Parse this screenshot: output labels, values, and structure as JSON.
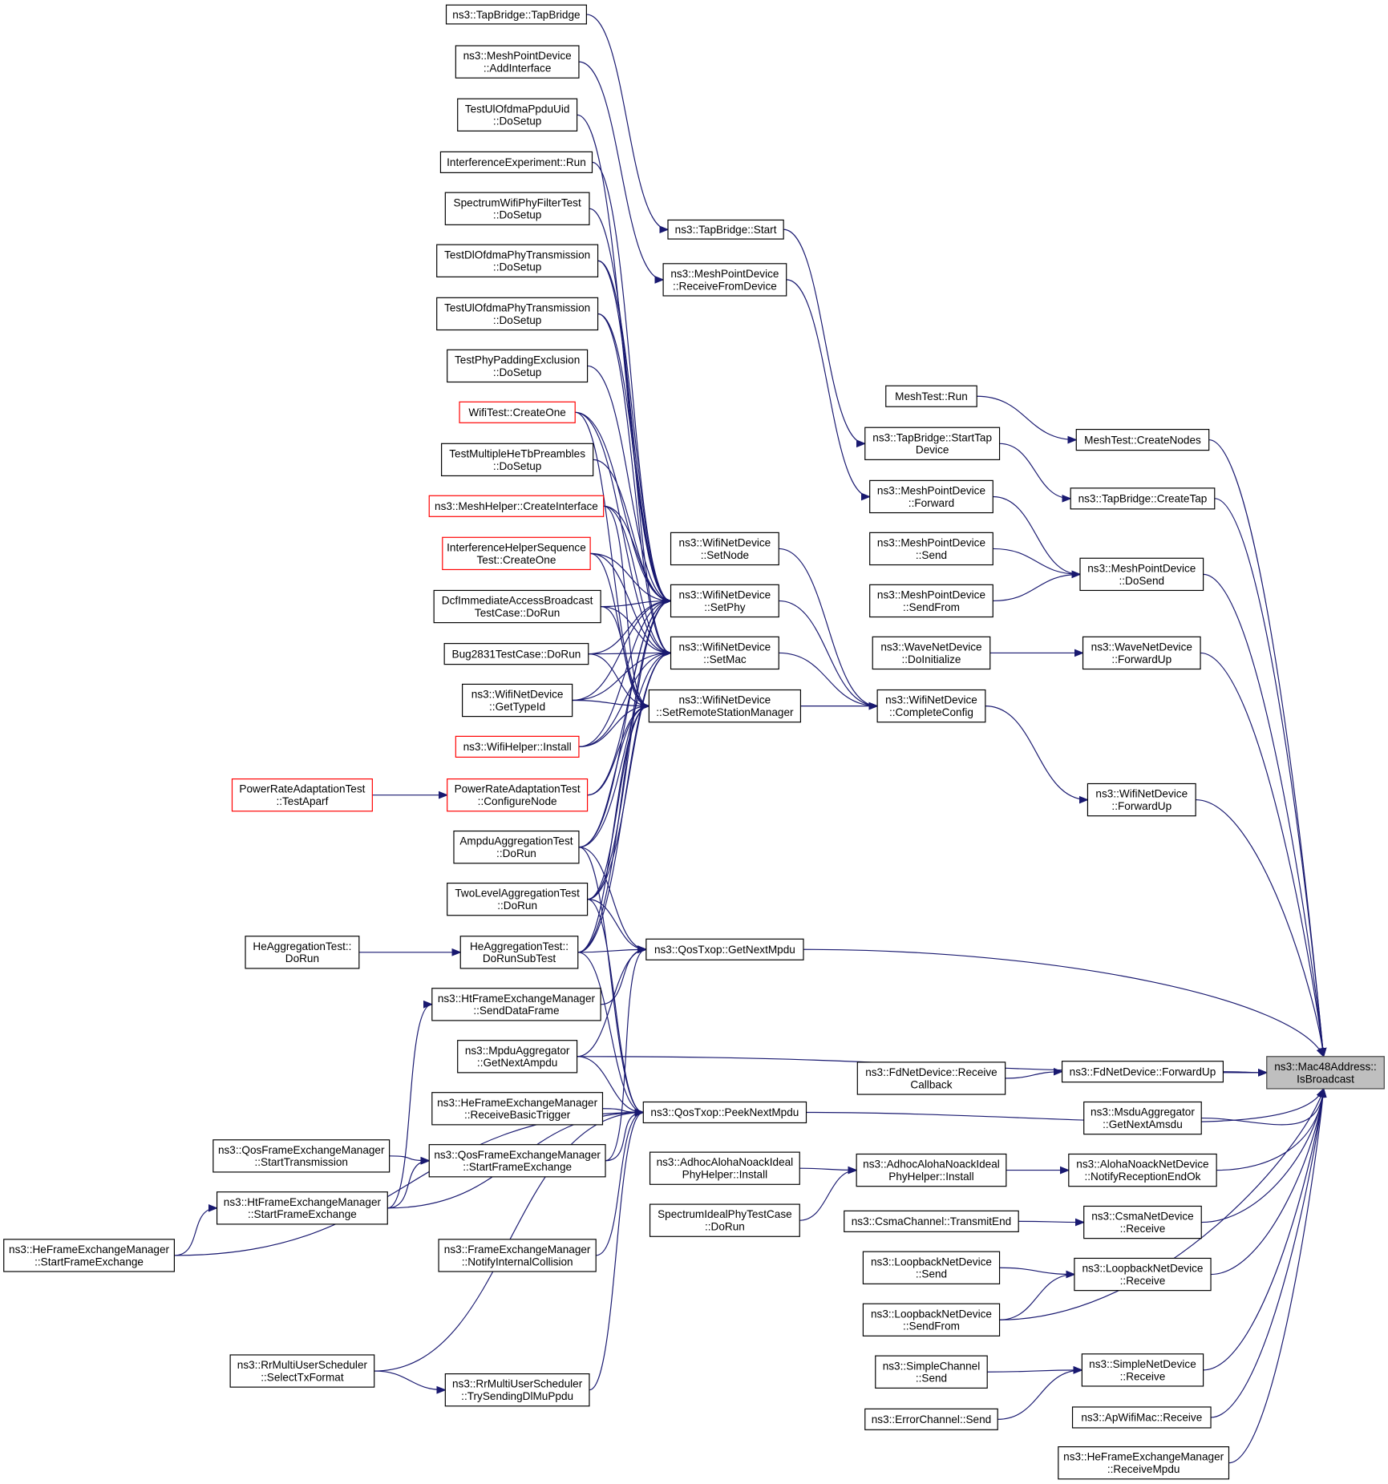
{
  "graph": {
    "edge_color": "#191970",
    "highlight_fill": "#bfbfbf",
    "red_border": "#ff0000",
    "nodes": [
      {
        "id": "n1",
        "lines": [
          "ns3::TapBridge::TapBridge"
        ]
      },
      {
        "id": "n2",
        "lines": [
          "ns3::MeshPointDevice",
          "::AddInterface"
        ]
      },
      {
        "id": "n3",
        "lines": [
          "TestUlOfdmaPpduUid",
          "::DoSetup"
        ]
      },
      {
        "id": "n4",
        "lines": [
          "InterferenceExperiment::Run"
        ]
      },
      {
        "id": "n5",
        "lines": [
          "SpectrumWifiPhyFilterTest",
          "::DoSetup"
        ]
      },
      {
        "id": "n6",
        "lines": [
          "TestDlOfdmaPhyTransmission",
          "::DoSetup"
        ]
      },
      {
        "id": "n7",
        "lines": [
          "TestUlOfdmaPhyTransmission",
          "::DoSetup"
        ]
      },
      {
        "id": "n8",
        "lines": [
          "TestPhyPaddingExclusion",
          "::DoSetup"
        ]
      },
      {
        "id": "n9",
        "lines": [
          "WifiTest::CreateOne"
        ],
        "red": true
      },
      {
        "id": "n10",
        "lines": [
          "TestMultipleHeTbPreambles",
          "::DoSetup"
        ]
      },
      {
        "id": "n11",
        "lines": [
          "ns3::MeshHelper::CreateInterface"
        ],
        "red": true
      },
      {
        "id": "n12",
        "lines": [
          "InterferenceHelperSequence",
          "Test::CreateOne"
        ],
        "red": true
      },
      {
        "id": "n13",
        "lines": [
          "DcfImmediateAccessBroadcast",
          "TestCase::DoRun"
        ]
      },
      {
        "id": "n14",
        "lines": [
          "Bug2831TestCase::DoRun"
        ]
      },
      {
        "id": "n15",
        "lines": [
          "ns3::WifiNetDevice",
          "::GetTypeId"
        ]
      },
      {
        "id": "n16",
        "lines": [
          "ns3::WifiHelper::Install"
        ],
        "red": true
      },
      {
        "id": "n17",
        "lines": [
          "PowerRateAdaptationTest",
          "::ConfigureNode"
        ],
        "red": true
      },
      {
        "id": "n18",
        "lines": [
          "PowerRateAdaptationTest",
          "::TestAparf"
        ],
        "red": true
      },
      {
        "id": "n19",
        "lines": [
          "AmpduAggregationTest",
          "::DoRun"
        ]
      },
      {
        "id": "n20",
        "lines": [
          "TwoLevelAggregationTest",
          "::DoRun"
        ]
      },
      {
        "id": "n21",
        "lines": [
          "HeAggregationTest::",
          "DoRun"
        ]
      },
      {
        "id": "n22",
        "lines": [
          "HeAggregationTest::",
          "DoRunSubTest"
        ]
      },
      {
        "id": "n23",
        "lines": [
          "ns3::HtFrameExchangeManager",
          "::SendDataFrame"
        ]
      },
      {
        "id": "n24",
        "lines": [
          "ns3::MpduAggregator",
          "::GetNextAmpdu"
        ]
      },
      {
        "id": "n25",
        "lines": [
          "ns3::HeFrameExchangeManager",
          "::ReceiveBasicTrigger"
        ]
      },
      {
        "id": "n26",
        "lines": [
          "ns3::QosFrameExchangeManager",
          "::StartTransmission"
        ]
      },
      {
        "id": "n27",
        "lines": [
          "ns3::QosFrameExchangeManager",
          "::StartFrameExchange"
        ]
      },
      {
        "id": "n28",
        "lines": [
          "ns3::HtFrameExchangeManager",
          "::StartFrameExchange"
        ]
      },
      {
        "id": "n29",
        "lines": [
          "ns3::HeFrameExchangeManager",
          "::StartFrameExchange"
        ]
      },
      {
        "id": "n30",
        "lines": [
          "ns3::FrameExchangeManager",
          "::NotifyInternalCollision"
        ]
      },
      {
        "id": "n31",
        "lines": [
          "ns3::RrMultiUserScheduler",
          "::SelectTxFormat"
        ]
      },
      {
        "id": "n32",
        "lines": [
          "ns3::RrMultiUserScheduler",
          "::TrySendingDlMuPpdu"
        ]
      },
      {
        "id": "n33",
        "lines": [
          "ns3::TapBridge::Start"
        ]
      },
      {
        "id": "n34",
        "lines": [
          "ns3::MeshPointDevice",
          "::ReceiveFromDevice"
        ]
      },
      {
        "id": "n35",
        "lines": [
          "ns3::WifiNetDevice",
          "::SetNode"
        ]
      },
      {
        "id": "n36",
        "lines": [
          "ns3::WifiNetDevice",
          "::SetPhy"
        ]
      },
      {
        "id": "n37",
        "lines": [
          "ns3::WifiNetDevice",
          "::SetMac"
        ]
      },
      {
        "id": "n38",
        "lines": [
          "ns3::WifiNetDevice",
          "::SetRemoteStationManager"
        ]
      },
      {
        "id": "n39",
        "lines": [
          "ns3::QosTxop::GetNextMpdu"
        ]
      },
      {
        "id": "n40",
        "lines": [
          "ns3::QosTxop::PeekNextMpdu"
        ]
      },
      {
        "id": "n41",
        "lines": [
          "ns3::AdhocAlohaNoackIdeal",
          "PhyHelper::Install"
        ]
      },
      {
        "id": "n42",
        "lines": [
          "SpectrumIdealPhyTestCase",
          "::DoRun"
        ]
      },
      {
        "id": "n43",
        "lines": [
          "MeshTest::Run"
        ]
      },
      {
        "id": "n44",
        "lines": [
          "ns3::TapBridge::StartTap",
          "Device"
        ]
      },
      {
        "id": "n45",
        "lines": [
          "ns3::MeshPointDevice",
          "::Forward"
        ]
      },
      {
        "id": "n46",
        "lines": [
          "ns3::MeshPointDevice",
          "::Send"
        ]
      },
      {
        "id": "n47",
        "lines": [
          "ns3::MeshPointDevice",
          "::SendFrom"
        ]
      },
      {
        "id": "n48",
        "lines": [
          "ns3::WaveNetDevice",
          "::DoInitialize"
        ]
      },
      {
        "id": "n49",
        "lines": [
          "ns3::WifiNetDevice",
          "::CompleteConfig"
        ]
      },
      {
        "id": "n50",
        "lines": [
          "ns3::FdNetDevice::Receive",
          "Callback"
        ]
      },
      {
        "id": "n51",
        "lines": [
          "ns3::AdhocAlohaNoackIdeal",
          "PhyHelper::Install"
        ]
      },
      {
        "id": "n52",
        "lines": [
          "ns3::CsmaChannel::TransmitEnd"
        ]
      },
      {
        "id": "n53",
        "lines": [
          "ns3::LoopbackNetDevice",
          "::Send"
        ]
      },
      {
        "id": "n54",
        "lines": [
          "ns3::LoopbackNetDevice",
          "::SendFrom"
        ]
      },
      {
        "id": "n55",
        "lines": [
          "ns3::SimpleChannel",
          "::Send"
        ]
      },
      {
        "id": "n56",
        "lines": [
          "ns3::ErrorChannel::Send"
        ]
      },
      {
        "id": "n57",
        "lines": [
          "MeshTest::CreateNodes"
        ]
      },
      {
        "id": "n58",
        "lines": [
          "ns3::TapBridge::CreateTap"
        ]
      },
      {
        "id": "n59",
        "lines": [
          "ns3::MeshPointDevice",
          "::DoSend"
        ]
      },
      {
        "id": "n60",
        "lines": [
          "ns3::WaveNetDevice",
          "::ForwardUp"
        ]
      },
      {
        "id": "n61",
        "lines": [
          "ns3::WifiNetDevice",
          "::ForwardUp"
        ]
      },
      {
        "id": "n62",
        "lines": [
          "ns3::FdNetDevice::ForwardUp"
        ]
      },
      {
        "id": "n63",
        "lines": [
          "ns3::MsduAggregator",
          "::GetNextAmsdu"
        ]
      },
      {
        "id": "n64",
        "lines": [
          "ns3::AlohaNoackNetDevice",
          "::NotifyReceptionEndOk"
        ]
      },
      {
        "id": "n65",
        "lines": [
          "ns3::CsmaNetDevice",
          "::Receive"
        ]
      },
      {
        "id": "n66",
        "lines": [
          "ns3::LoopbackNetDevice",
          "::Receive"
        ]
      },
      {
        "id": "n67",
        "lines": [
          "ns3::SimpleNetDevice",
          "::Receive"
        ]
      },
      {
        "id": "n68",
        "lines": [
          "ns3::ApWifiMac::Receive"
        ]
      },
      {
        "id": "n69",
        "lines": [
          "ns3::HeFrameExchangeManager",
          "::ReceiveMpdu"
        ]
      },
      {
        "id": "n70",
        "lines": [
          "ns3::Mac48Address::",
          "IsBroadcast"
        ],
        "target": true
      }
    ],
    "edges": [
      [
        "n1",
        "n33"
      ],
      [
        "n2",
        "n34"
      ],
      [
        "n33",
        "n44"
      ],
      [
        "n34",
        "n45"
      ],
      [
        "n43",
        "n57"
      ],
      [
        "n44",
        "n58"
      ],
      [
        "n45",
        "n59"
      ],
      [
        "n46",
        "n59"
      ],
      [
        "n47",
        "n59"
      ],
      [
        "n48",
        "n60"
      ],
      [
        "n49",
        "n61"
      ],
      [
        "n35",
        "n49"
      ],
      [
        "n36",
        "n49"
      ],
      [
        "n37",
        "n49"
      ],
      [
        "n38",
        "n49"
      ],
      [
        "n50",
        "n62"
      ],
      [
        "n41",
        "n51"
      ],
      [
        "n42",
        "n51"
      ],
      [
        "n51",
        "n64"
      ],
      [
        "n52",
        "n65"
      ],
      [
        "n53",
        "n66"
      ],
      [
        "n54",
        "n66"
      ],
      [
        "n55",
        "n67"
      ],
      [
        "n56",
        "n67"
      ],
      [
        "n18",
        "n17"
      ],
      [
        "n21",
        "n22"
      ],
      [
        "n3",
        "n36"
      ],
      [
        "n4",
        "n36"
      ],
      [
        "n5",
        "n36"
      ],
      [
        "n6",
        "n36"
      ],
      [
        "n7",
        "n36"
      ],
      [
        "n8",
        "n36"
      ],
      [
        "n9",
        "n36"
      ],
      [
        "n10",
        "n36"
      ],
      [
        "n11",
        "n36"
      ],
      [
        "n12",
        "n36"
      ],
      [
        "n13",
        "n36"
      ],
      [
        "n14",
        "n36"
      ],
      [
        "n15",
        "n36"
      ],
      [
        "n16",
        "n36"
      ],
      [
        "n17",
        "n36"
      ],
      [
        "n19",
        "n36"
      ],
      [
        "n20",
        "n36"
      ],
      [
        "n22",
        "n36"
      ],
      [
        "n6",
        "n37"
      ],
      [
        "n7",
        "n37"
      ],
      [
        "n9",
        "n37"
      ],
      [
        "n11",
        "n37"
      ],
      [
        "n12",
        "n37"
      ],
      [
        "n13",
        "n37"
      ],
      [
        "n14",
        "n37"
      ],
      [
        "n15",
        "n37"
      ],
      [
        "n16",
        "n37"
      ],
      [
        "n19",
        "n37"
      ],
      [
        "n20",
        "n37"
      ],
      [
        "n22",
        "n37"
      ],
      [
        "n9",
        "n38"
      ],
      [
        "n11",
        "n38"
      ],
      [
        "n12",
        "n38"
      ],
      [
        "n13",
        "n38"
      ],
      [
        "n14",
        "n38"
      ],
      [
        "n15",
        "n38"
      ],
      [
        "n16",
        "n38"
      ],
      [
        "n17",
        "n38"
      ],
      [
        "n19",
        "n38"
      ],
      [
        "n20",
        "n38"
      ],
      [
        "n22",
        "n38"
      ],
      [
        "n19",
        "n39"
      ],
      [
        "n20",
        "n39"
      ],
      [
        "n22",
        "n39"
      ],
      [
        "n23",
        "n39"
      ],
      [
        "n24",
        "n39"
      ],
      [
        "n27",
        "n39"
      ],
      [
        "n19",
        "n40"
      ],
      [
        "n20",
        "n40"
      ],
      [
        "n22",
        "n40"
      ],
      [
        "n24",
        "n40"
      ],
      [
        "n25",
        "n40"
      ],
      [
        "n27",
        "n40"
      ],
      [
        "n28",
        "n40"
      ],
      [
        "n29",
        "n40"
      ],
      [
        "n30",
        "n40"
      ],
      [
        "n31",
        "n40"
      ],
      [
        "n32",
        "n40"
      ],
      [
        "n26",
        "n27"
      ],
      [
        "n28",
        "n27"
      ],
      [
        "n28",
        "n23"
      ],
      [
        "n29",
        "n28"
      ],
      [
        "n31",
        "n32"
      ],
      [
        "n39",
        "n70"
      ],
      [
        "n24",
        "n70"
      ],
      [
        "n40",
        "n70"
      ],
      [
        "n54",
        "n70"
      ],
      [
        "n57",
        "n70"
      ],
      [
        "n58",
        "n70"
      ],
      [
        "n59",
        "n70"
      ],
      [
        "n60",
        "n70"
      ],
      [
        "n61",
        "n70"
      ],
      [
        "n62",
        "n70"
      ],
      [
        "n63",
        "n70"
      ],
      [
        "n64",
        "n70"
      ],
      [
        "n65",
        "n70"
      ],
      [
        "n66",
        "n70"
      ],
      [
        "n67",
        "n70"
      ],
      [
        "n68",
        "n70"
      ],
      [
        "n69",
        "n70"
      ]
    ]
  }
}
